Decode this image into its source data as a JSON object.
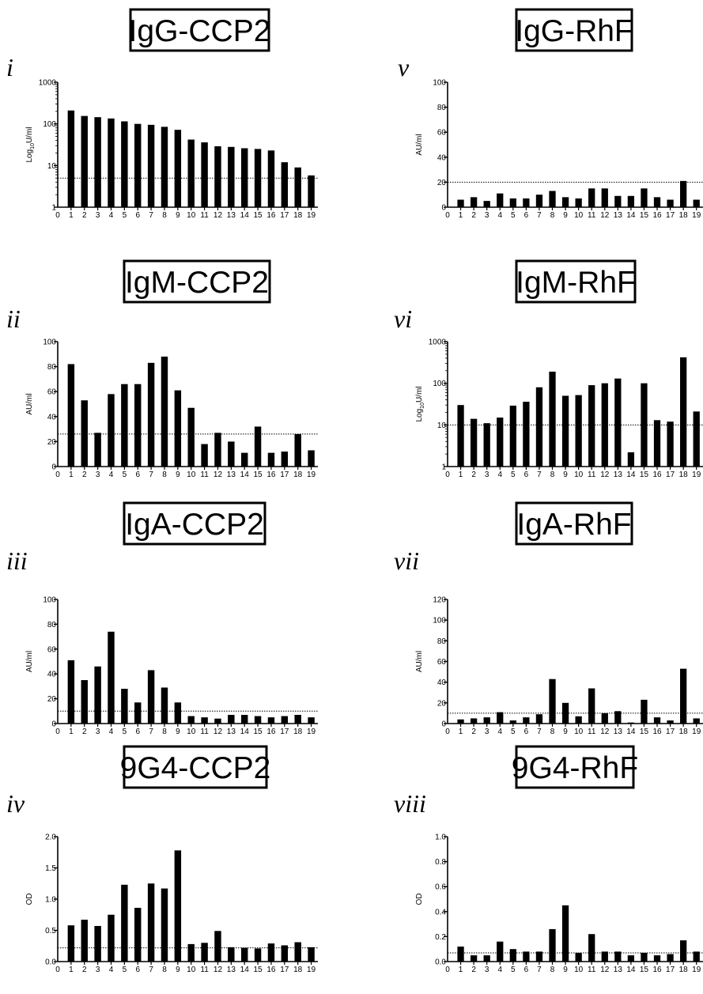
{
  "chart_data": [
    {
      "type": "bar",
      "title": "IgG-CCP2",
      "panel_label": "i",
      "ylabel": "Log10U/ml",
      "ylabel_main": "Log",
      "ylabel_sub": "10",
      "ylabel_rest": "U/ml",
      "yscale": "log",
      "ylim": [
        1,
        1000
      ],
      "yticks": [
        1,
        10,
        100,
        1000
      ],
      "ytick_labels": [
        "1",
        "10",
        "100",
        "1000"
      ],
      "x_zero_label": "0",
      "categories": [
        "1",
        "2",
        "3",
        "4",
        "5",
        "6",
        "7",
        "8",
        "9",
        "10",
        "11",
        "12",
        "13",
        "14",
        "15",
        "16",
        "17",
        "18",
        "19"
      ],
      "values": [
        210,
        155,
        145,
        135,
        115,
        100,
        95,
        85,
        72,
        42,
        36,
        29,
        28,
        26,
        25,
        23,
        12,
        9,
        5.8
      ],
      "cutoff": 5
    },
    {
      "type": "bar",
      "title": "IgG-RhF",
      "panel_label": "v",
      "ylabel": "AU/ml",
      "yscale": "linear",
      "ylim": [
        0,
        100
      ],
      "yticks": [
        0,
        20,
        40,
        60,
        80,
        100
      ],
      "ytick_labels": [
        "0",
        "20",
        "40",
        "60",
        "80",
        "100"
      ],
      "x_zero_label": "0",
      "categories": [
        "1",
        "2",
        "3",
        "4",
        "5",
        "6",
        "7",
        "8",
        "9",
        "10",
        "11",
        "12",
        "13",
        "14",
        "15",
        "16",
        "17",
        "18",
        "19"
      ],
      "values": [
        6,
        8,
        5,
        11,
        7,
        7,
        10,
        13,
        8,
        7,
        15,
        15,
        9,
        9,
        15,
        8,
        6,
        21,
        6
      ],
      "cutoff": 20
    },
    {
      "type": "bar",
      "title": "IgM-CCP2",
      "panel_label": "ii",
      "ylabel": "AU/ml",
      "yscale": "linear",
      "ylim": [
        0,
        100
      ],
      "yticks": [
        0,
        20,
        40,
        60,
        80,
        100
      ],
      "ytick_labels": [
        "0",
        "20",
        "40",
        "60",
        "80",
        "100"
      ],
      "x_zero_label": "0",
      "categories": [
        "1",
        "2",
        "3",
        "4",
        "5",
        "6",
        "7",
        "8",
        "9",
        "10",
        "11",
        "12",
        "13",
        "14",
        "15",
        "16",
        "17",
        "18",
        "19"
      ],
      "values": [
        82,
        53,
        27,
        58,
        66,
        66,
        83,
        88,
        61,
        47,
        18,
        27,
        20,
        11,
        32,
        11,
        12,
        26,
        13
      ],
      "cutoff": 26
    },
    {
      "type": "bar",
      "title": "IgM-RhF",
      "panel_label": "vi",
      "ylabel": "Log10U/ml",
      "ylabel_main": "Log",
      "ylabel_sub": "10",
      "ylabel_rest": "U/ml",
      "yscale": "log",
      "ylim": [
        1,
        1000
      ],
      "yticks": [
        1,
        10,
        100,
        1000
      ],
      "ytick_labels": [
        "1",
        "10",
        "100",
        "1000"
      ],
      "x_zero_label": "0",
      "categories": [
        "1",
        "2",
        "3",
        "4",
        "5",
        "6",
        "7",
        "8",
        "9",
        "10",
        "11",
        "12",
        "13",
        "14",
        "15",
        "16",
        "17",
        "18",
        "19"
      ],
      "values": [
        30,
        14,
        11,
        15,
        29,
        36,
        80,
        190,
        50,
        52,
        90,
        100,
        130,
        2.2,
        100,
        13,
        12,
        420,
        21
      ],
      "cutoff": 10
    },
    {
      "type": "bar",
      "title": "IgA-CCP2",
      "panel_label": "iii",
      "ylabel": "AU/ml",
      "yscale": "linear",
      "ylim": [
        0,
        100
      ],
      "yticks": [
        0,
        20,
        40,
        60,
        80,
        100
      ],
      "ytick_labels": [
        "0",
        "20",
        "40",
        "60",
        "80",
        "100"
      ],
      "x_zero_label": "0",
      "categories": [
        "1",
        "2",
        "3",
        "4",
        "5",
        "6",
        "7",
        "8",
        "9",
        "10",
        "11",
        "12",
        "13",
        "14",
        "15",
        "16",
        "17",
        "18",
        "19"
      ],
      "values": [
        51,
        35,
        46,
        74,
        28,
        17,
        43,
        29,
        17,
        6,
        5,
        4,
        7,
        7,
        6,
        5,
        6,
        7,
        5
      ],
      "cutoff": 10
    },
    {
      "type": "bar",
      "title": "IgA-RhF",
      "panel_label": "vii",
      "ylabel": "AU/ml",
      "yscale": "linear",
      "ylim": [
        0,
        120
      ],
      "yticks": [
        0,
        20,
        40,
        60,
        80,
        100,
        120
      ],
      "ytick_labels": [
        "0",
        "20",
        "40",
        "60",
        "80",
        "100",
        "120"
      ],
      "x_zero_label": "0",
      "categories": [
        "1",
        "2",
        "3",
        "4",
        "5",
        "6",
        "7",
        "8",
        "9",
        "10",
        "11",
        "12",
        "13",
        "14",
        "15",
        "16",
        "17",
        "18",
        "19"
      ],
      "values": [
        4,
        5,
        6,
        11,
        3,
        6,
        9,
        43,
        20,
        7,
        34,
        10,
        12,
        1,
        23,
        6,
        3,
        53,
        5
      ],
      "cutoff": 10
    },
    {
      "type": "bar",
      "title": "9G4-CCP2",
      "panel_label": "iv",
      "ylabel": "OD",
      "yscale": "linear",
      "ylim": [
        0,
        2.0
      ],
      "yticks": [
        0,
        0.5,
        1.0,
        1.5,
        2.0
      ],
      "ytick_labels": [
        "0.0",
        "0.5",
        "1.0",
        "1.5",
        "2.0"
      ],
      "x_zero_label": "0",
      "categories": [
        "1",
        "2",
        "3",
        "4",
        "5",
        "6",
        "7",
        "8",
        "9",
        "10",
        "11",
        "12",
        "13",
        "14",
        "15",
        "16",
        "17",
        "18",
        "19"
      ],
      "values": [
        0.58,
        0.67,
        0.57,
        0.75,
        1.23,
        0.86,
        1.25,
        1.17,
        1.78,
        0.28,
        0.3,
        0.49,
        0.23,
        0.22,
        0.21,
        0.29,
        0.26,
        0.31,
        0.23
      ],
      "cutoff": 0.22
    },
    {
      "type": "bar",
      "title": "9G4-RhF",
      "panel_label": "viii",
      "ylabel": "OD",
      "yscale": "linear",
      "ylim": [
        0,
        1.0
      ],
      "yticks": [
        0,
        0.2,
        0.4,
        0.6,
        0.8,
        1.0
      ],
      "ytick_labels": [
        "0.0",
        "0.2",
        "0.4",
        "0.6",
        "0.8",
        "1.0"
      ],
      "x_zero_label": "0",
      "categories": [
        "1",
        "2",
        "3",
        "4",
        "5",
        "6",
        "7",
        "8",
        "9",
        "10",
        "11",
        "12",
        "13",
        "14",
        "15",
        "16",
        "17",
        "18",
        "19"
      ],
      "values": [
        0.12,
        0.05,
        0.05,
        0.16,
        0.1,
        0.08,
        0.08,
        0.26,
        0.45,
        0.07,
        0.22,
        0.08,
        0.08,
        0.05,
        0.07,
        0.05,
        0.06,
        0.17,
        0.08
      ],
      "cutoff": 0.07
    }
  ],
  "colors": {
    "bar": "#000000",
    "axis": "#000000",
    "cutoff_line": "#000000",
    "background": "#ffffff"
  }
}
